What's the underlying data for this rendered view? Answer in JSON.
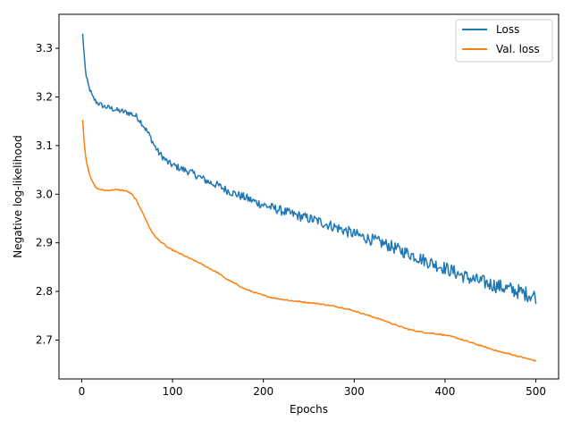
{
  "chart_data": {
    "type": "line",
    "title": "",
    "xlabel": "Epochs",
    "ylabel": "Negative log-likelihood",
    "xlim": [
      -25,
      525
    ],
    "ylim": [
      2.62,
      3.37
    ],
    "xticks": [
      0,
      100,
      200,
      300,
      400,
      500
    ],
    "xtick_labels": [
      "0",
      "100",
      "200",
      "300",
      "400",
      "500"
    ],
    "yticks": [
      2.7,
      2.8,
      2.9,
      3.0,
      3.1,
      3.2,
      3.3
    ],
    "ytick_labels": [
      "2.7",
      "2.8",
      "2.9",
      "3.0",
      "3.1",
      "3.2",
      "3.3"
    ],
    "grid": false,
    "legend_position": "top-right",
    "series": [
      {
        "name": "Loss",
        "color": "#1f77b4",
        "noise": 0.008,
        "x": [
          1,
          3,
          5,
          8,
          12,
          16,
          20,
          25,
          30,
          35,
          40,
          45,
          50,
          55,
          60,
          65,
          70,
          75,
          80,
          85,
          90,
          95,
          100,
          110,
          120,
          130,
          140,
          150,
          160,
          170,
          180,
          190,
          200,
          210,
          220,
          230,
          240,
          250,
          260,
          270,
          280,
          290,
          300,
          310,
          320,
          330,
          340,
          350,
          360,
          370,
          380,
          390,
          400,
          410,
          420,
          430,
          440,
          450,
          460,
          470,
          480,
          490,
          500
        ],
        "y": [
          3.33,
          3.28,
          3.24,
          3.22,
          3.2,
          3.19,
          3.185,
          3.18,
          3.178,
          3.175,
          3.172,
          3.17,
          3.168,
          3.165,
          3.16,
          3.15,
          3.135,
          3.12,
          3.1,
          3.085,
          3.075,
          3.065,
          3.06,
          3.052,
          3.045,
          3.035,
          3.025,
          3.018,
          3.008,
          3.0,
          2.993,
          2.985,
          2.978,
          2.972,
          2.966,
          2.96,
          2.955,
          2.95,
          2.945,
          2.938,
          2.932,
          2.925,
          2.918,
          2.912,
          2.906,
          2.9,
          2.893,
          2.885,
          2.878,
          2.87,
          2.862,
          2.855,
          2.848,
          2.84,
          2.832,
          2.825,
          2.82,
          2.815,
          2.81,
          2.805,
          2.8,
          2.795,
          2.79
        ]
      },
      {
        "name": "Val. loss",
        "color": "#ff7f0e",
        "noise": 0.0012,
        "x": [
          1,
          3,
          5,
          8,
          10,
          12,
          15,
          18,
          20,
          25,
          30,
          35,
          40,
          45,
          50,
          55,
          60,
          65,
          70,
          75,
          80,
          85,
          90,
          95,
          100,
          110,
          120,
          130,
          140,
          150,
          160,
          170,
          180,
          190,
          200,
          210,
          220,
          230,
          240,
          250,
          260,
          270,
          280,
          290,
          300,
          310,
          320,
          330,
          340,
          350,
          360,
          370,
          380,
          390,
          400,
          410,
          420,
          430,
          440,
          450,
          460,
          470,
          480,
          490,
          500
        ],
        "y": [
          3.153,
          3.1,
          3.07,
          3.045,
          3.035,
          3.025,
          3.015,
          3.011,
          3.01,
          3.008,
          3.008,
          3.009,
          3.009,
          3.008,
          3.006,
          3.0,
          2.988,
          2.97,
          2.95,
          2.93,
          2.915,
          2.905,
          2.898,
          2.89,
          2.885,
          2.876,
          2.867,
          2.858,
          2.848,
          2.838,
          2.825,
          2.815,
          2.805,
          2.798,
          2.792,
          2.787,
          2.784,
          2.781,
          2.779,
          2.777,
          2.775,
          2.772,
          2.769,
          2.765,
          2.76,
          2.754,
          2.748,
          2.742,
          2.735,
          2.728,
          2.722,
          2.718,
          2.715,
          2.713,
          2.71,
          2.706,
          2.7,
          2.694,
          2.688,
          2.682,
          2.676,
          2.672,
          2.667,
          2.662,
          2.657
        ]
      }
    ]
  }
}
